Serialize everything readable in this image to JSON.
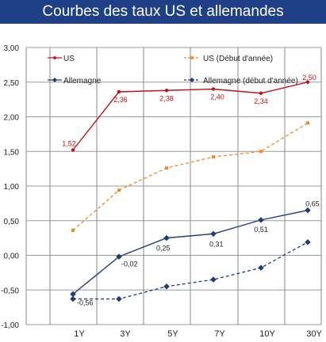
{
  "chart_data": {
    "type": "line",
    "title": "Courbes des taux US et allemandes",
    "categories": [
      "1Y",
      "3Y",
      "5Y",
      "7Y",
      "10Y",
      "30Y"
    ],
    "yticks": [
      "3,00",
      "2,50",
      "2,00",
      "1,50",
      "1,00",
      "0,50",
      "0,00",
      "-0,50",
      "-1,00"
    ],
    "ylim": [
      -1.0,
      3.0
    ],
    "grid": true,
    "legend_position": "top",
    "series": [
      {
        "name": "US",
        "color": "#c0101a",
        "dash": false,
        "marker": "circle",
        "values": [
          1.52,
          2.36,
          2.38,
          2.4,
          2.34,
          2.5
        ],
        "labels": [
          "1,52",
          "2,36",
          "2,38",
          "2,40",
          "2,34",
          "2,50"
        ]
      },
      {
        "name": "US (Début d'année)",
        "color": "#f08a24",
        "dash": true,
        "marker": "square",
        "values": [
          0.36,
          0.94,
          1.26,
          1.42,
          1.5,
          1.91
        ]
      },
      {
        "name": "Allemagne",
        "color": "#203d7a",
        "dash": false,
        "marker": "diamond",
        "values": [
          -0.56,
          -0.02,
          0.25,
          0.31,
          0.51,
          0.65
        ],
        "labels": [
          "-0,56",
          "-0,02",
          "0,25",
          "0,31",
          "0,51",
          "0,65"
        ]
      },
      {
        "name": "Allemagne (début d'année)",
        "color": "#203d7a",
        "dash": true,
        "marker": "diamond",
        "values": [
          -0.63,
          -0.63,
          -0.45,
          -0.35,
          -0.18,
          0.19
        ]
      }
    ]
  }
}
